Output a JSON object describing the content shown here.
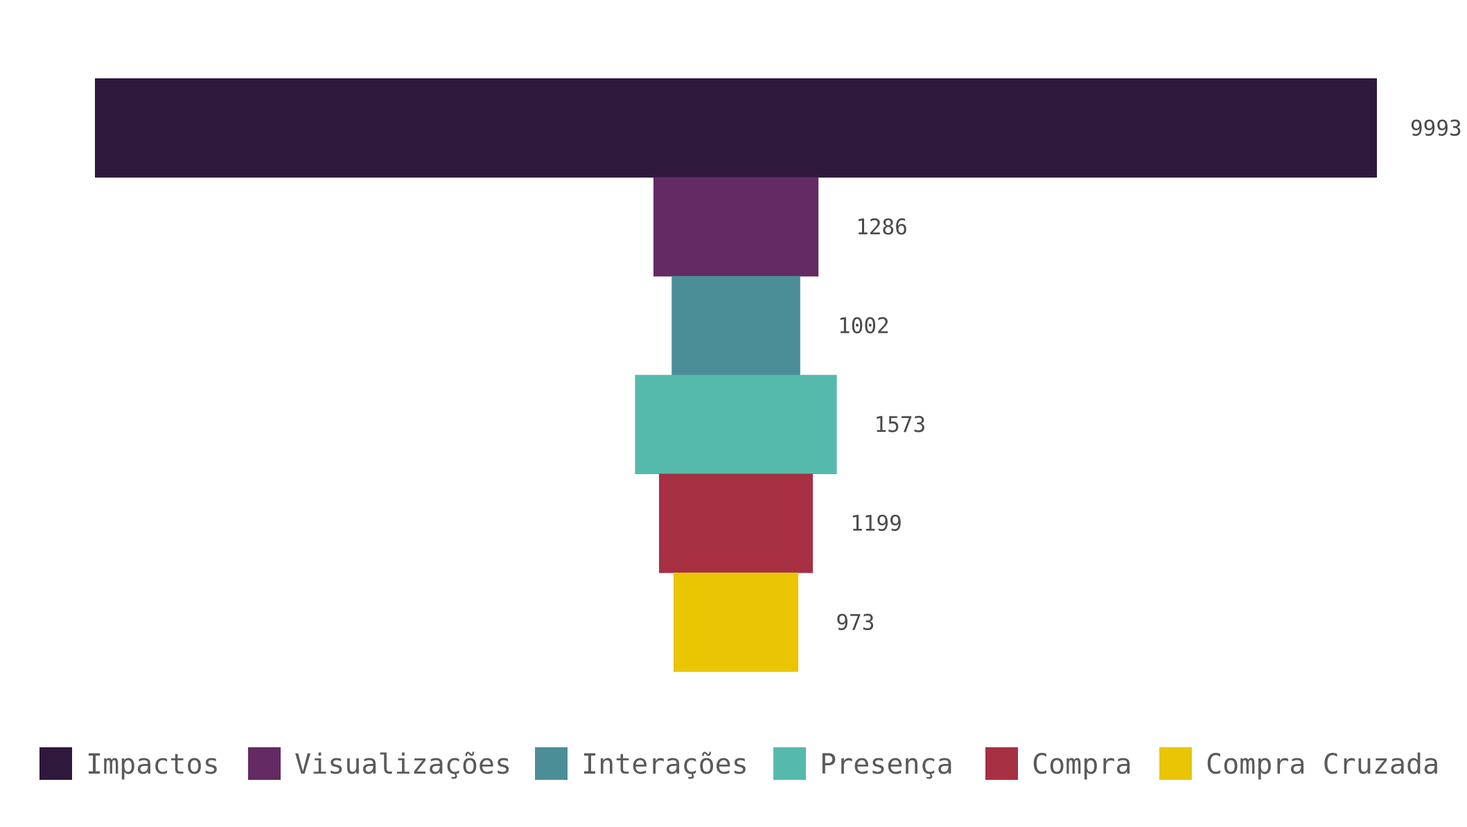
{
  "chart_data": {
    "type": "bar",
    "subtype": "funnel",
    "categories": [
      "Impactos",
      "Visualizações",
      "Interações",
      "Presença",
      "Compra",
      "Compra Cruzada"
    ],
    "values": [
      9993,
      1286,
      1002,
      1573,
      1199,
      973
    ],
    "colors": [
      "#2e193d",
      "#632a63",
      "#4c8e97",
      "#55baab",
      "#a63042",
      "#e9c503"
    ],
    "legend_position": "bottom",
    "grid": false,
    "title": "",
    "xlabel": "",
    "ylabel": ""
  }
}
